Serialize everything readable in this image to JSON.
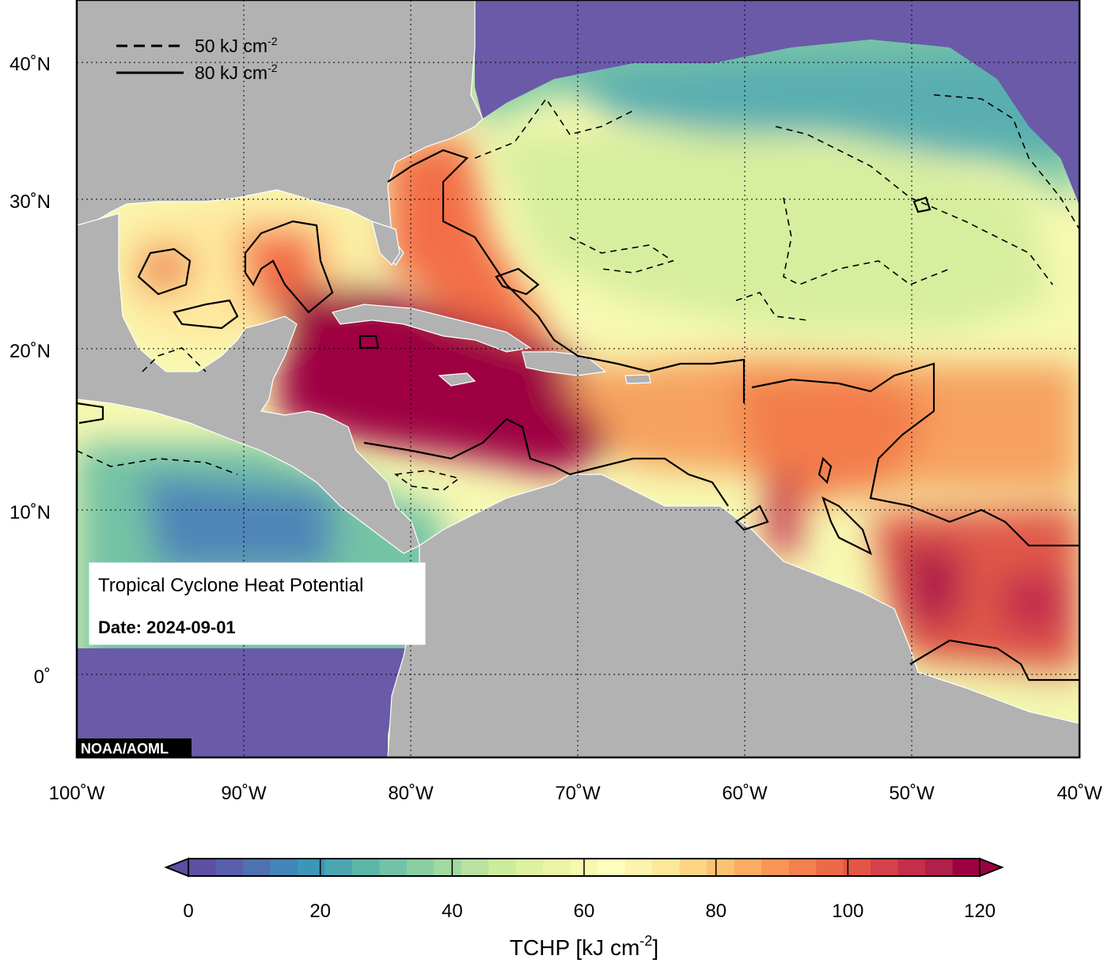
{
  "title": "Tropical Cyclone Heat Potential",
  "date_label": "Date: 2024-09-01",
  "credit": "NOAA/AOML",
  "contour_legend": [
    {
      "style": "dashed",
      "label": "50 kJ cm",
      "sup": "-2"
    },
    {
      "style": "solid",
      "label": "80 kJ cm",
      "sup": "-2"
    }
  ],
  "lat_ticks": [
    {
      "label": "40˚N",
      "value": 40
    },
    {
      "label": "30˚N",
      "value": 30
    },
    {
      "label": "20˚N",
      "value": 20
    },
    {
      "label": "10˚N",
      "value": 10
    },
    {
      "label": "0˚",
      "value": 0
    }
  ],
  "lon_ticks": [
    {
      "label": "100˚W",
      "value": -100
    },
    {
      "label": "90˚W",
      "value": -90
    },
    {
      "label": "80˚W",
      "value": -80
    },
    {
      "label": "70˚W",
      "value": -70
    },
    {
      "label": "60˚W",
      "value": -60
    },
    {
      "label": "50˚W",
      "value": -50
    },
    {
      "label": "40˚W",
      "value": -40
    }
  ],
  "colorbar": {
    "label": "TCHP [kJ cm",
    "label_sup": "-2",
    "label_end": "]",
    "min": 0,
    "max": 120,
    "ticks": [
      {
        "label": "0",
        "value": 0
      },
      {
        "label": "20",
        "value": 20
      },
      {
        "label": "40",
        "value": 40
      },
      {
        "label": "60",
        "value": 60
      },
      {
        "label": "80",
        "value": 80
      },
      {
        "label": "100",
        "value": 100
      },
      {
        "label": "120",
        "value": 120
      }
    ],
    "colors": [
      "#5e4fa2",
      "#5a5fac",
      "#4f71b2",
      "#4286b9",
      "#3d96b6",
      "#4ba6b1",
      "#5db7a9",
      "#72c3a5",
      "#8bcea3",
      "#a2d8a2",
      "#b9e2a0",
      "#cdeb9d",
      "#ddf19f",
      "#ebf6a4",
      "#f5faad",
      "#fdfdbe",
      "#fef3ad",
      "#fee79b",
      "#fed485",
      "#fdc271",
      "#fcac61",
      "#f99655",
      "#f4804d",
      "#ec6a47",
      "#e35646",
      "#d54249",
      "#c42e4b",
      "#b0204a",
      "#9e0142"
    ]
  },
  "colors": {
    "land": "#b2b2b2",
    "deep_ocean": "#6a5aa8",
    "max": "#9e0142"
  }
}
